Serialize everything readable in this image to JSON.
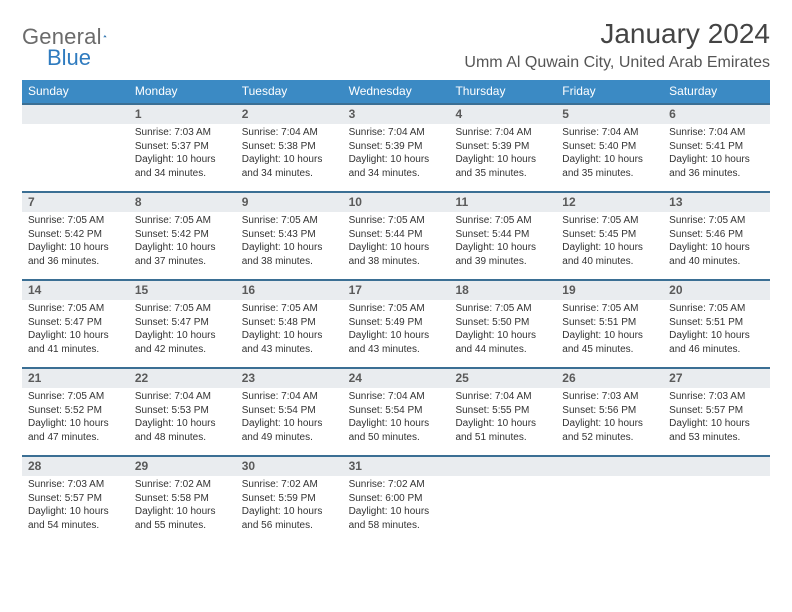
{
  "brand": {
    "name1": "General",
    "name2": "Blue"
  },
  "title": "January 2024",
  "location": "Umm Al Quwain City, United Arab Emirates",
  "colors": {
    "header_bg": "#3b8ac4",
    "header_text": "#ffffff",
    "week_divider": "#3b6f94",
    "date_bg": "#e9ecef",
    "date_text": "#5a5a5a",
    "body_text": "#333333",
    "brand_gray": "#6b6b6b",
    "brand_blue": "#2f7bbf",
    "page_bg": "#ffffff"
  },
  "typography": {
    "month_title_pt": 28,
    "location_pt": 16,
    "dayhead_pt": 12,
    "date_pt": 12,
    "cell_pt": 10,
    "logo_pt": 22
  },
  "days": [
    "Sunday",
    "Monday",
    "Tuesday",
    "Wednesday",
    "Thursday",
    "Friday",
    "Saturday"
  ],
  "grid": [
    [
      {
        "date": "",
        "sr": "",
        "ss": "",
        "dl": ""
      },
      {
        "date": "1",
        "sr": "Sunrise: 7:03 AM",
        "ss": "Sunset: 5:37 PM",
        "dl": "Daylight: 10 hours and 34 minutes."
      },
      {
        "date": "2",
        "sr": "Sunrise: 7:04 AM",
        "ss": "Sunset: 5:38 PM",
        "dl": "Daylight: 10 hours and 34 minutes."
      },
      {
        "date": "3",
        "sr": "Sunrise: 7:04 AM",
        "ss": "Sunset: 5:39 PM",
        "dl": "Daylight: 10 hours and 34 minutes."
      },
      {
        "date": "4",
        "sr": "Sunrise: 7:04 AM",
        "ss": "Sunset: 5:39 PM",
        "dl": "Daylight: 10 hours and 35 minutes."
      },
      {
        "date": "5",
        "sr": "Sunrise: 7:04 AM",
        "ss": "Sunset: 5:40 PM",
        "dl": "Daylight: 10 hours and 35 minutes."
      },
      {
        "date": "6",
        "sr": "Sunrise: 7:04 AM",
        "ss": "Sunset: 5:41 PM",
        "dl": "Daylight: 10 hours and 36 minutes."
      }
    ],
    [
      {
        "date": "7",
        "sr": "Sunrise: 7:05 AM",
        "ss": "Sunset: 5:42 PM",
        "dl": "Daylight: 10 hours and 36 minutes."
      },
      {
        "date": "8",
        "sr": "Sunrise: 7:05 AM",
        "ss": "Sunset: 5:42 PM",
        "dl": "Daylight: 10 hours and 37 minutes."
      },
      {
        "date": "9",
        "sr": "Sunrise: 7:05 AM",
        "ss": "Sunset: 5:43 PM",
        "dl": "Daylight: 10 hours and 38 minutes."
      },
      {
        "date": "10",
        "sr": "Sunrise: 7:05 AM",
        "ss": "Sunset: 5:44 PM",
        "dl": "Daylight: 10 hours and 38 minutes."
      },
      {
        "date": "11",
        "sr": "Sunrise: 7:05 AM",
        "ss": "Sunset: 5:44 PM",
        "dl": "Daylight: 10 hours and 39 minutes."
      },
      {
        "date": "12",
        "sr": "Sunrise: 7:05 AM",
        "ss": "Sunset: 5:45 PM",
        "dl": "Daylight: 10 hours and 40 minutes."
      },
      {
        "date": "13",
        "sr": "Sunrise: 7:05 AM",
        "ss": "Sunset: 5:46 PM",
        "dl": "Daylight: 10 hours and 40 minutes."
      }
    ],
    [
      {
        "date": "14",
        "sr": "Sunrise: 7:05 AM",
        "ss": "Sunset: 5:47 PM",
        "dl": "Daylight: 10 hours and 41 minutes."
      },
      {
        "date": "15",
        "sr": "Sunrise: 7:05 AM",
        "ss": "Sunset: 5:47 PM",
        "dl": "Daylight: 10 hours and 42 minutes."
      },
      {
        "date": "16",
        "sr": "Sunrise: 7:05 AM",
        "ss": "Sunset: 5:48 PM",
        "dl": "Daylight: 10 hours and 43 minutes."
      },
      {
        "date": "17",
        "sr": "Sunrise: 7:05 AM",
        "ss": "Sunset: 5:49 PM",
        "dl": "Daylight: 10 hours and 43 minutes."
      },
      {
        "date": "18",
        "sr": "Sunrise: 7:05 AM",
        "ss": "Sunset: 5:50 PM",
        "dl": "Daylight: 10 hours and 44 minutes."
      },
      {
        "date": "19",
        "sr": "Sunrise: 7:05 AM",
        "ss": "Sunset: 5:51 PM",
        "dl": "Daylight: 10 hours and 45 minutes."
      },
      {
        "date": "20",
        "sr": "Sunrise: 7:05 AM",
        "ss": "Sunset: 5:51 PM",
        "dl": "Daylight: 10 hours and 46 minutes."
      }
    ],
    [
      {
        "date": "21",
        "sr": "Sunrise: 7:05 AM",
        "ss": "Sunset: 5:52 PM",
        "dl": "Daylight: 10 hours and 47 minutes."
      },
      {
        "date": "22",
        "sr": "Sunrise: 7:04 AM",
        "ss": "Sunset: 5:53 PM",
        "dl": "Daylight: 10 hours and 48 minutes."
      },
      {
        "date": "23",
        "sr": "Sunrise: 7:04 AM",
        "ss": "Sunset: 5:54 PM",
        "dl": "Daylight: 10 hours and 49 minutes."
      },
      {
        "date": "24",
        "sr": "Sunrise: 7:04 AM",
        "ss": "Sunset: 5:54 PM",
        "dl": "Daylight: 10 hours and 50 minutes."
      },
      {
        "date": "25",
        "sr": "Sunrise: 7:04 AM",
        "ss": "Sunset: 5:55 PM",
        "dl": "Daylight: 10 hours and 51 minutes."
      },
      {
        "date": "26",
        "sr": "Sunrise: 7:03 AM",
        "ss": "Sunset: 5:56 PM",
        "dl": "Daylight: 10 hours and 52 minutes."
      },
      {
        "date": "27",
        "sr": "Sunrise: 7:03 AM",
        "ss": "Sunset: 5:57 PM",
        "dl": "Daylight: 10 hours and 53 minutes."
      }
    ],
    [
      {
        "date": "28",
        "sr": "Sunrise: 7:03 AM",
        "ss": "Sunset: 5:57 PM",
        "dl": "Daylight: 10 hours and 54 minutes."
      },
      {
        "date": "29",
        "sr": "Sunrise: 7:02 AM",
        "ss": "Sunset: 5:58 PM",
        "dl": "Daylight: 10 hours and 55 minutes."
      },
      {
        "date": "30",
        "sr": "Sunrise: 7:02 AM",
        "ss": "Sunset: 5:59 PM",
        "dl": "Daylight: 10 hours and 56 minutes."
      },
      {
        "date": "31",
        "sr": "Sunrise: 7:02 AM",
        "ss": "Sunset: 6:00 PM",
        "dl": "Daylight: 10 hours and 58 minutes."
      },
      {
        "date": "",
        "sr": "",
        "ss": "",
        "dl": ""
      },
      {
        "date": "",
        "sr": "",
        "ss": "",
        "dl": ""
      },
      {
        "date": "",
        "sr": "",
        "ss": "",
        "dl": ""
      }
    ]
  ]
}
